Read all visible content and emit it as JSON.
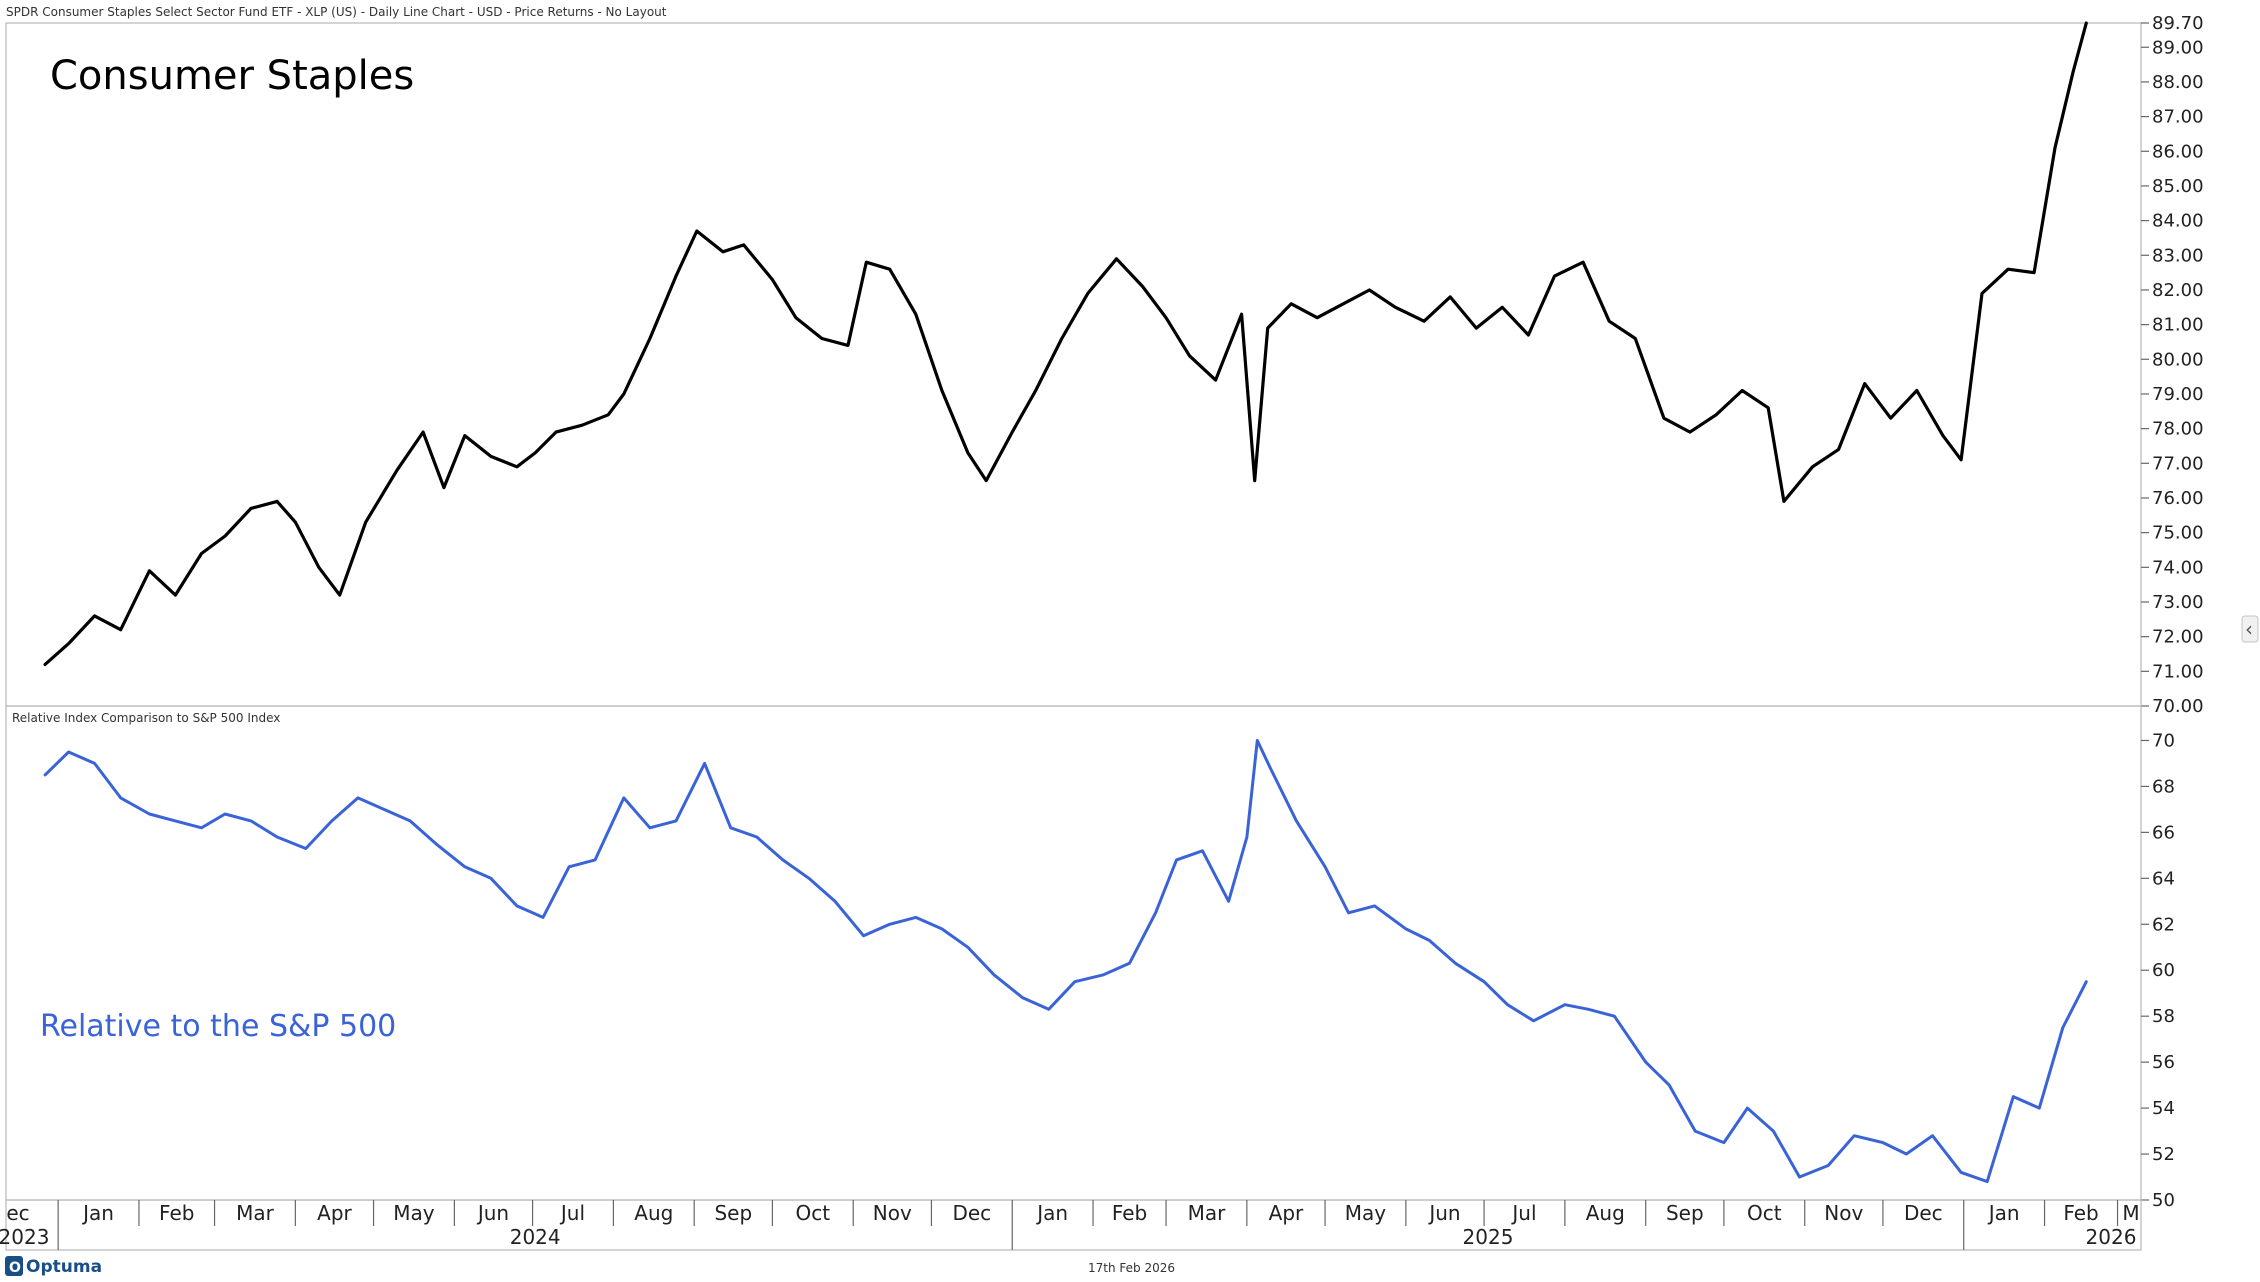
{
  "header": {
    "title": "SPDR Consumer Staples Select Sector Fund ETF - XLP (US) - Daily Line Chart - USD - Price Returns - No Layout"
  },
  "footer": {
    "logo": "Optuma",
    "date": "17th Feb 2026"
  },
  "side_button": {
    "icon": "chevron-left-icon",
    "glyph": "‹"
  },
  "x_axis": {
    "months": [
      "ec",
      "Jan",
      "Feb",
      "Mar",
      "Apr",
      "May",
      "Jun",
      "Jul",
      "Aug",
      "Sep",
      "Oct",
      "Nov",
      "Dec",
      "Jan",
      "Feb",
      "Mar",
      "Apr",
      "May",
      "Jun",
      "Jul",
      "Aug",
      "Sep",
      "Oct",
      "Nov",
      "Dec",
      "Jan",
      "Feb",
      "M"
    ],
    "years": [
      "2023",
      "2024",
      "2025",
      "2026"
    ]
  },
  "chart_data": [
    {
      "type": "line",
      "title": "Consumer Staples",
      "ylabel": "",
      "ylim": [
        70,
        89.7
      ],
      "y_ticks": [
        "89.70",
        "89.00",
        "88.00",
        "87.00",
        "86.00",
        "85.00",
        "84.00",
        "83.00",
        "82.00",
        "81.00",
        "80.00",
        "79.00",
        "78.00",
        "77.00",
        "76.00",
        "75.00",
        "74.00",
        "73.00",
        "72.00",
        "71.00",
        "70.00"
      ],
      "color": "#000000",
      "series": [
        {
          "x": [
            "2023-12-27",
            "2024-01-05",
            "2024-01-15",
            "2024-01-25",
            "2024-02-05",
            "2024-02-15",
            "2024-02-25",
            "2024-03-05",
            "2024-03-15",
            "2024-03-25",
            "2024-04-01",
            "2024-04-10",
            "2024-04-18",
            "2024-04-28",
            "2024-05-10",
            "2024-05-20",
            "2024-05-28",
            "2024-06-05",
            "2024-06-15",
            "2024-06-25",
            "2024-07-02",
            "2024-07-10",
            "2024-07-20",
            "2024-07-30",
            "2024-08-05",
            "2024-08-15",
            "2024-08-25",
            "2024-09-02",
            "2024-09-12",
            "2024-09-20",
            "2024-10-01",
            "2024-10-10",
            "2024-10-20",
            "2024-10-30",
            "2024-11-06",
            "2024-11-15",
            "2024-11-25",
            "2024-12-05",
            "2024-12-15",
            "2024-12-22",
            "2025-01-01",
            "2025-01-10",
            "2025-01-20",
            "2025-01-30",
            "2025-02-10",
            "2025-02-20",
            "2025-03-01",
            "2025-03-10",
            "2025-03-20",
            "2025-03-30",
            "2025-04-04",
            "2025-04-09",
            "2025-04-18",
            "2025-04-28",
            "2025-05-08",
            "2025-05-18",
            "2025-05-28",
            "2025-06-08",
            "2025-06-18",
            "2025-06-28",
            "2025-07-08",
            "2025-07-18",
            "2025-07-28",
            "2025-08-08",
            "2025-08-18",
            "2025-08-28",
            "2025-09-08",
            "2025-09-18",
            "2025-09-28",
            "2025-10-08",
            "2025-10-18",
            "2025-10-24",
            "2025-11-04",
            "2025-11-14",
            "2025-11-24",
            "2025-12-04",
            "2025-12-14",
            "2025-12-24",
            "2025-12-31",
            "2026-01-08",
            "2026-01-18",
            "2026-01-28",
            "2026-02-05",
            "2026-02-12",
            "2026-02-17"
          ],
          "values": [
            71.2,
            71.8,
            72.6,
            72.2,
            73.9,
            73.2,
            74.4,
            74.9,
            75.7,
            75.9,
            75.3,
            74.0,
            73.2,
            75.3,
            76.8,
            77.9,
            76.3,
            77.8,
            77.2,
            76.9,
            77.3,
            77.9,
            78.1,
            78.4,
            79.0,
            80.6,
            82.4,
            83.7,
            83.1,
            83.3,
            82.3,
            81.2,
            80.6,
            80.4,
            82.8,
            82.6,
            81.3,
            79.1,
            77.3,
            76.5,
            77.9,
            79.1,
            80.6,
            81.9,
            82.9,
            82.1,
            81.2,
            80.1,
            79.4,
            81.3,
            76.5,
            80.9,
            81.6,
            81.2,
            81.6,
            82.0,
            81.5,
            81.1,
            81.8,
            80.9,
            81.5,
            80.7,
            82.4,
            82.8,
            81.1,
            80.6,
            78.3,
            77.9,
            78.4,
            79.1,
            78.6,
            75.9,
            76.9,
            77.4,
            79.3,
            78.3,
            79.1,
            77.8,
            77.1,
            81.9,
            82.6,
            82.5,
            86.1,
            88.3,
            89.7
          ]
        }
      ]
    },
    {
      "type": "line",
      "title": "Relative Index Comparison to S&P 500 Index",
      "annotation": "Relative to the S&P 500",
      "ylabel": "",
      "ylim": [
        50,
        71.5
      ],
      "y_ticks": [
        "70",
        "68",
        "66",
        "64",
        "62",
        "60",
        "58",
        "56",
        "54",
        "52",
        "50"
      ],
      "color": "#3a63d8",
      "series": [
        {
          "x": [
            "2023-12-27",
            "2024-01-05",
            "2024-01-15",
            "2024-01-25",
            "2024-02-05",
            "2024-02-15",
            "2024-02-25",
            "2024-03-05",
            "2024-03-15",
            "2024-03-25",
            "2024-04-05",
            "2024-04-15",
            "2024-04-25",
            "2024-05-05",
            "2024-05-15",
            "2024-05-25",
            "2024-06-05",
            "2024-06-15",
            "2024-06-25",
            "2024-07-05",
            "2024-07-15",
            "2024-07-25",
            "2024-08-05",
            "2024-08-15",
            "2024-08-25",
            "2024-09-05",
            "2024-09-15",
            "2024-09-25",
            "2024-10-05",
            "2024-10-15",
            "2024-10-25",
            "2024-11-05",
            "2024-11-15",
            "2024-11-25",
            "2024-12-05",
            "2024-12-15",
            "2024-12-25",
            "2025-01-05",
            "2025-01-15",
            "2025-01-25",
            "2025-02-05",
            "2025-02-15",
            "2025-02-25",
            "2025-03-05",
            "2025-03-15",
            "2025-03-25",
            "2025-04-01",
            "2025-04-05",
            "2025-04-10",
            "2025-04-20",
            "2025-05-01",
            "2025-05-10",
            "2025-05-20",
            "2025-06-01",
            "2025-06-10",
            "2025-06-20",
            "2025-07-01",
            "2025-07-10",
            "2025-07-20",
            "2025-08-01",
            "2025-08-10",
            "2025-08-20",
            "2025-09-01",
            "2025-09-10",
            "2025-09-20",
            "2025-10-01",
            "2025-10-10",
            "2025-10-20",
            "2025-10-30",
            "2025-11-10",
            "2025-11-20",
            "2025-12-01",
            "2025-12-10",
            "2025-12-20",
            "2025-12-31",
            "2026-01-10",
            "2026-01-20",
            "2026-01-30",
            "2026-02-08",
            "2026-02-17"
          ],
          "values": [
            68.5,
            69.5,
            69.0,
            67.5,
            66.8,
            66.5,
            66.2,
            66.8,
            66.5,
            65.8,
            65.3,
            66.5,
            67.5,
            67.0,
            66.5,
            65.5,
            64.5,
            64.0,
            62.8,
            62.3,
            64.5,
            64.8,
            67.5,
            66.2,
            66.5,
            69.0,
            66.2,
            65.8,
            64.8,
            64.0,
            63.0,
            61.5,
            62.0,
            62.3,
            61.8,
            61.0,
            59.8,
            58.8,
            58.3,
            59.5,
            59.8,
            60.3,
            62.5,
            64.8,
            65.2,
            63.0,
            65.8,
            70.0,
            68.8,
            66.5,
            64.5,
            62.5,
            62.8,
            61.8,
            61.3,
            60.3,
            59.5,
            58.5,
            57.8,
            58.5,
            58.3,
            58.0,
            56.0,
            55.0,
            53.0,
            52.5,
            54.0,
            53.0,
            51.0,
            51.5,
            52.8,
            52.5,
            52.0,
            52.8,
            51.2,
            50.8,
            54.5,
            54.0,
            57.5,
            59.5
          ]
        }
      ]
    }
  ]
}
